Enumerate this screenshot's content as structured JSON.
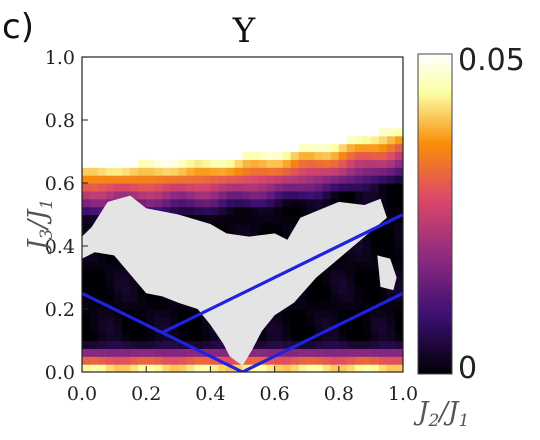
{
  "panel_label": "c)",
  "chart_data": {
    "type": "heatmap",
    "title": "Υ",
    "xlabel": "J",
    "xlabel_sub_num": "2",
    "xlabel_sep": "/J",
    "xlabel_sub_den": "1",
    "ylabel": "J",
    "ylabel_sub_num": "3",
    "ylabel_sep": "/J",
    "ylabel_sub_den": "1",
    "xlim": [
      0.0,
      1.0
    ],
    "ylim": [
      0.0,
      1.0
    ],
    "xticks": [
      "0.0",
      "0.2",
      "0.4",
      "0.6",
      "0.8",
      "1.0"
    ],
    "yticks": [
      "0.0",
      "0.2",
      "0.4",
      "0.6",
      "0.8",
      "1.0"
    ],
    "colorbar": {
      "min_label": "0",
      "max_label": "0.05",
      "range": [
        0,
        0.05
      ],
      "colormap": "inferno",
      "colors": [
        "#000004",
        "#3b0f70",
        "#8c2981",
        "#dd4968",
        "#f98e09",
        "#fcffa4",
        "#ffffff"
      ]
    },
    "lines": [
      {
        "points": [
          [
            0.0,
            0.25
          ],
          [
            0.5,
            0.0
          ],
          [
            1.0,
            0.25
          ]
        ],
        "color": "#1f22e0"
      },
      {
        "points": [
          [
            0.25,
            0.125
          ],
          [
            1.0,
            0.5
          ]
        ],
        "color": "#1f22e0"
      }
    ],
    "gray_region_color": "#e4e4e4"
  }
}
